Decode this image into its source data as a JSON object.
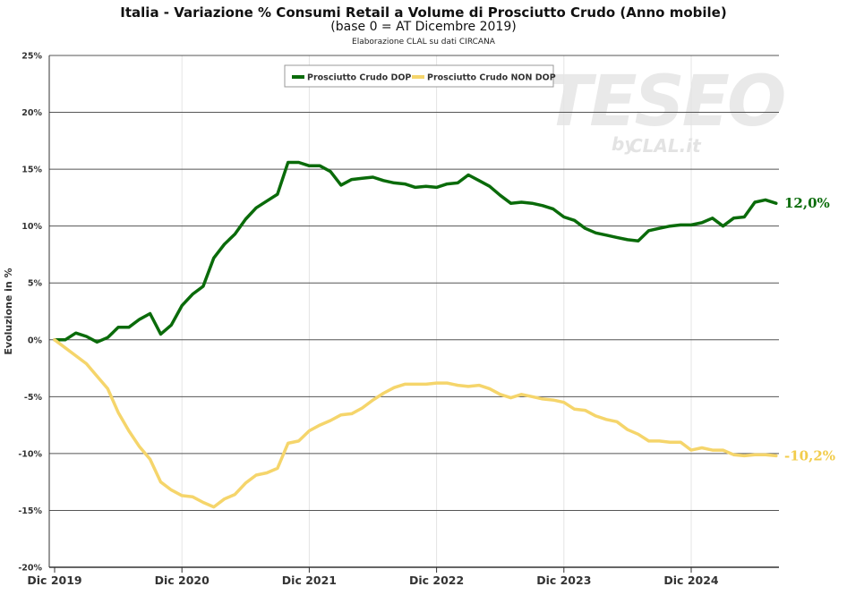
{
  "header": {
    "title": "Italia - Variazione % Consumi Retail a Volume di Prosciutto Crudo (Anno mobile)",
    "subtitle": "(base 0 = AT Dicembre 2019)",
    "note": "Elaborazione CLAL su dati CIRCANA"
  },
  "watermark": {
    "main": "TESEO",
    "by": "by",
    "brand": "CLAL.it"
  },
  "chart_data": {
    "type": "line",
    "ylabel": "Evoluzione in %",
    "ylim": [
      -20,
      25
    ],
    "yticks": [
      25,
      20,
      15,
      10,
      5,
      0,
      -5,
      -10,
      -15,
      -20
    ],
    "ytick_labels": [
      "25%",
      "20%",
      "15%",
      "10%",
      "5%",
      "0%",
      "-5%",
      "-10%",
      "-15%",
      "-20%"
    ],
    "x_start": "Dic 2019",
    "xticks": [
      0,
      12,
      24,
      36,
      48,
      60
    ],
    "xtick_labels": [
      "Dic 2019",
      "Dic 2020",
      "Dic 2021",
      "Dic 2022",
      "Dic 2023",
      "Dic 2024"
    ],
    "xlim": [
      0,
      68.5
    ],
    "grid": true,
    "legend_position": "top-right",
    "series": [
      {
        "name": "Prosciutto Crudo DOP",
        "color": "#0a6b0a",
        "end_label": "12,0%",
        "values": [
          0,
          0,
          0.6,
          0.3,
          -0.2,
          0.2,
          1.1,
          1.1,
          1.8,
          2.3,
          0.5,
          1.3,
          3,
          4,
          4.7,
          7.2,
          8.4,
          9.3,
          10.6,
          11.6,
          12.2,
          12.8,
          15.6,
          15.6,
          15.3,
          15.3,
          14.8,
          13.6,
          14.1,
          14.2,
          14.3,
          14,
          13.8,
          13.7,
          13.4,
          13.5,
          13.4,
          13.7,
          13.8,
          14.5,
          14,
          13.5,
          12.7,
          12,
          12.1,
          12,
          11.8,
          11.5,
          10.8,
          10.5,
          9.8,
          9.4,
          9.2,
          9,
          8.8,
          8.7,
          9.6,
          9.8,
          10,
          10.1,
          10.1,
          10.3,
          10.7,
          10,
          10.7,
          10.8,
          12.1,
          12.3,
          12
        ]
      },
      {
        "name": "Prosciutto Crudo NON DOP",
        "color": "#f5d56b",
        "end_label": "-10,2%",
        "values": [
          0,
          -0.7,
          -1.4,
          -2.1,
          -3.2,
          -4.3,
          -6.4,
          -8,
          -9.4,
          -10.5,
          -12.5,
          -13.2,
          -13.7,
          -13.8,
          -14.3,
          -14.7,
          -14,
          -13.6,
          -12.6,
          -11.9,
          -11.7,
          -11.3,
          -9.1,
          -8.9,
          -8,
          -7.5,
          -7.1,
          -6.6,
          -6.5,
          -6,
          -5.3,
          -4.7,
          -4.2,
          -3.9,
          -3.9,
          -3.9,
          -3.8,
          -3.8,
          -4,
          -4.1,
          -4,
          -4.3,
          -4.8,
          -5.1,
          -4.8,
          -5,
          -5.2,
          -5.3,
          -5.5,
          -6.1,
          -6.2,
          -6.7,
          -7,
          -7.2,
          -7.9,
          -8.3,
          -8.9,
          -8.9,
          -9,
          -9,
          -9.7,
          -9.5,
          -9.7,
          -9.7,
          -10.1,
          -10.2,
          -10.1,
          -10.1,
          -10.2
        ]
      }
    ]
  }
}
